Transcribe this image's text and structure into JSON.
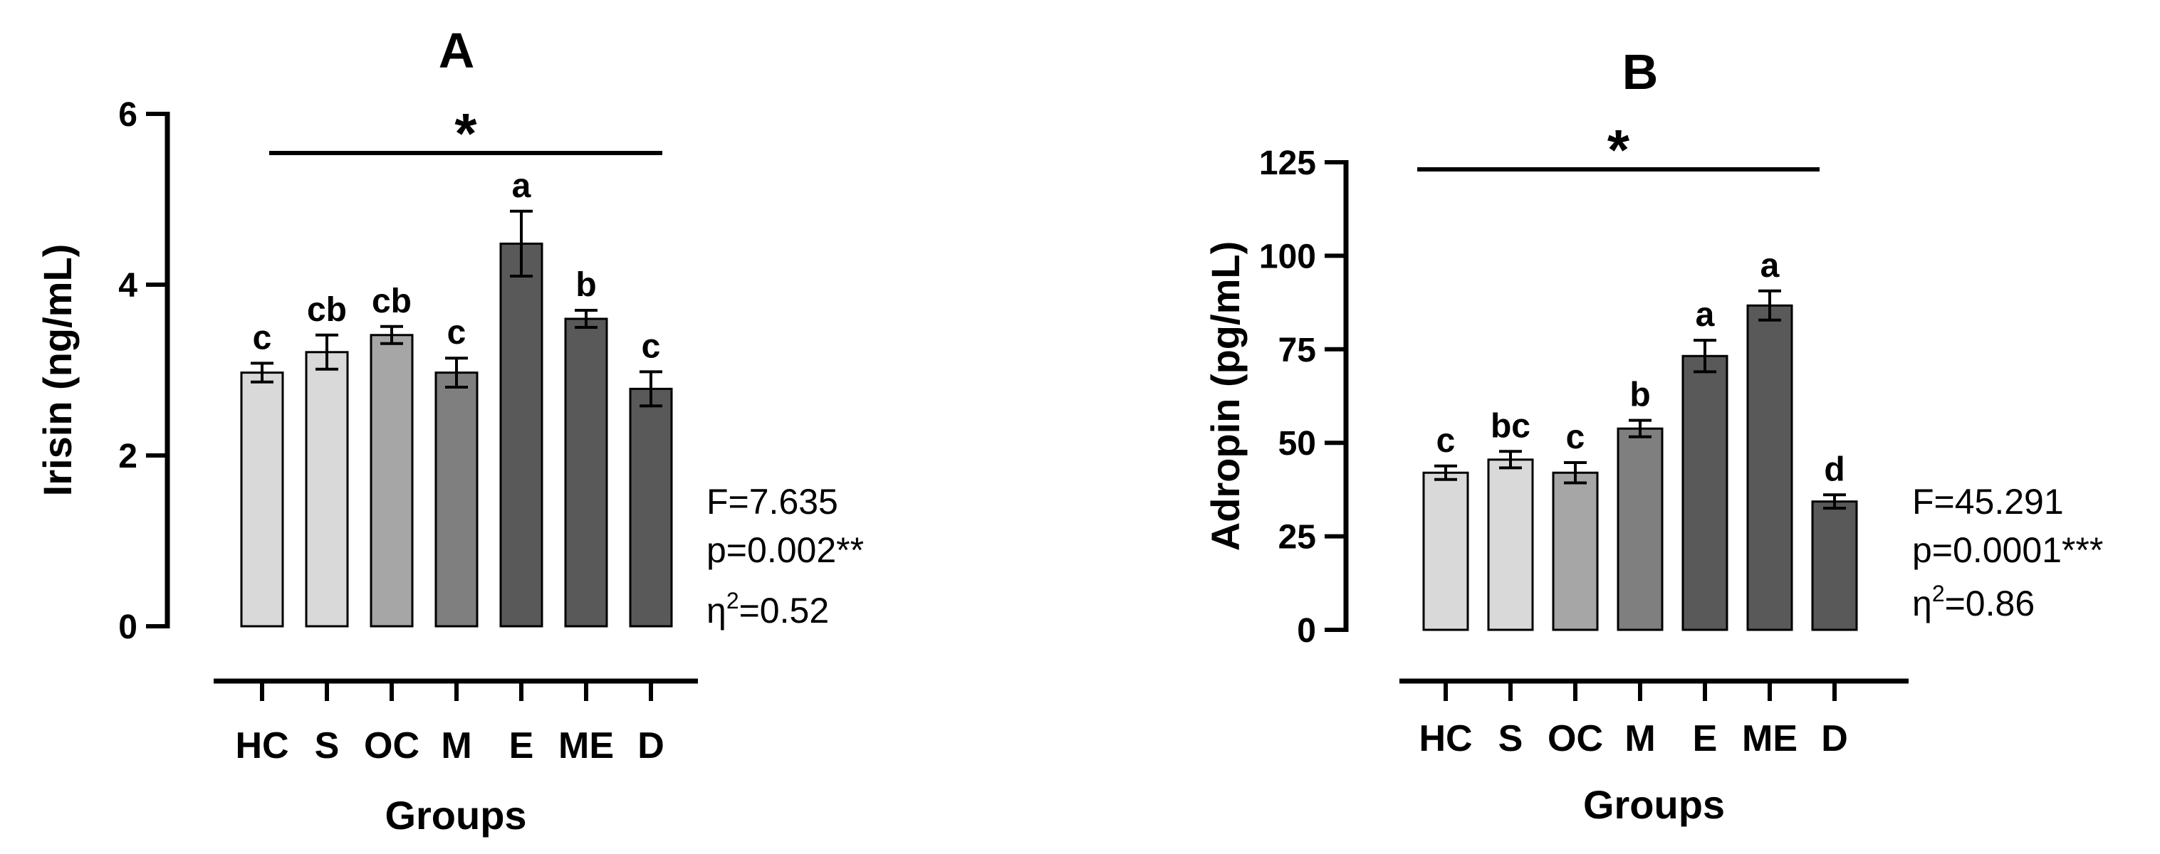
{
  "chart_data": [
    {
      "type": "bar",
      "title": "A",
      "xlabel": "Groups",
      "ylabel": "Irisin (ng/mL)",
      "ylim": [
        0,
        6
      ],
      "yticks": [
        "0",
        "2",
        "4",
        "6"
      ],
      "categories": [
        "HC",
        "S",
        "OC",
        "M",
        "E",
        "ME",
        "D"
      ],
      "values": [
        2.97,
        3.21,
        3.41,
        2.97,
        4.48,
        3.6,
        2.78
      ],
      "errors": [
        0.11,
        0.2,
        0.1,
        0.17,
        0.38,
        0.1,
        0.2
      ],
      "letters": [
        "c",
        "cb",
        "cb",
        "c",
        "a",
        "b",
        "c"
      ],
      "bar_colors": [
        "#d9d9d9",
        "#d9d9d9",
        "#a6a6a6",
        "#7f7f7f",
        "#595959",
        "#595959",
        "#595959"
      ],
      "significance": "*",
      "stats": {
        "f": "F=7.635",
        "p": "p=0.002**",
        "eta_prefix": "η",
        "eta_sup": "2",
        "eta_value": "=0.52"
      }
    },
    {
      "type": "bar",
      "title": "B",
      "xlabel": "Groups",
      "ylabel": "Adropin (pg/mL)",
      "ylim": [
        0,
        125
      ],
      "yticks": [
        "0",
        "25",
        "50",
        "75",
        "100",
        "125"
      ],
      "categories": [
        "HC",
        "S",
        "OC",
        "M",
        "E",
        "ME",
        "D"
      ],
      "values": [
        42,
        45.5,
        42,
        53.8,
        73.2,
        86.7,
        34.3
      ],
      "errors": [
        1.8,
        2.2,
        2.7,
        2.2,
        4.2,
        3.9,
        1.8
      ],
      "letters": [
        "c",
        "bc",
        "c",
        "b",
        "a",
        "a",
        "d"
      ],
      "bar_colors": [
        "#d9d9d9",
        "#d9d9d9",
        "#a6a6a6",
        "#7f7f7f",
        "#595959",
        "#595959",
        "#595959"
      ],
      "significance": "*",
      "stats": {
        "f": "F=45.291",
        "p": "p=0.0001***",
        "eta_prefix": "η",
        "eta_sup": "2",
        "eta_value": "=0.86"
      }
    }
  ]
}
